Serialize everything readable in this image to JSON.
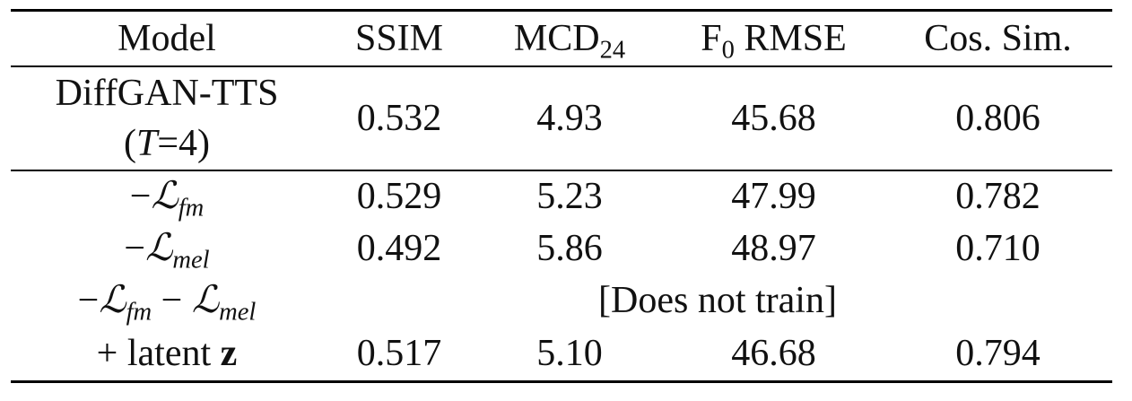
{
  "table": {
    "header": [
      [
        [
          {
            "text": "Model"
          }
        ]
      ],
      [
        [
          {
            "text": "SSIM"
          }
        ]
      ],
      [
        [
          {
            "text": "MCD"
          },
          {
            "text": "24",
            "style": "sub"
          }
        ]
      ],
      [
        [
          {
            "text": "F"
          },
          {
            "text": "0",
            "style": "sub"
          },
          {
            "text": " RMSE"
          }
        ]
      ],
      [
        [
          {
            "text": "Cos. Sim."
          }
        ]
      ]
    ],
    "rows": [
      {
        "label": [
          [
            {
              "text": "DiffGAN-TTS"
            }
          ],
          [
            {
              "text": "("
            },
            {
              "text": "T",
              "style": "italic"
            },
            {
              "text": "=4)"
            }
          ]
        ],
        "values": [
          "0.532",
          "4.93",
          "45.68",
          "0.806"
        ],
        "rule_after": true
      },
      {
        "label": [
          [
            {
              "text": "−"
            },
            {
              "text": "ℒ",
              "style": "italic"
            },
            {
              "text": "fm",
              "style": "sub-italic"
            }
          ]
        ],
        "values": [
          "0.529",
          "5.23",
          "47.99",
          "0.782"
        ]
      },
      {
        "label": [
          [
            {
              "text": "−"
            },
            {
              "text": "ℒ",
              "style": "italic"
            },
            {
              "text": "mel",
              "style": "sub-italic"
            }
          ]
        ],
        "values": [
          "0.492",
          "5.86",
          "48.97",
          "0.710"
        ]
      },
      {
        "label": [
          [
            {
              "text": "−"
            },
            {
              "text": "ℒ",
              "style": "italic"
            },
            {
              "text": "fm",
              "style": "sub-italic"
            },
            {
              "text": " − "
            },
            {
              "text": "ℒ",
              "style": "italic"
            },
            {
              "text": "mel",
              "style": "sub-italic"
            }
          ]
        ],
        "note": "[Does not train]"
      },
      {
        "label": [
          [
            {
              "text": "+ latent "
            },
            {
              "text": "z",
              "style": "bold"
            }
          ]
        ],
        "values": [
          "0.517",
          "5.10",
          "46.68",
          "0.794"
        ]
      }
    ]
  }
}
